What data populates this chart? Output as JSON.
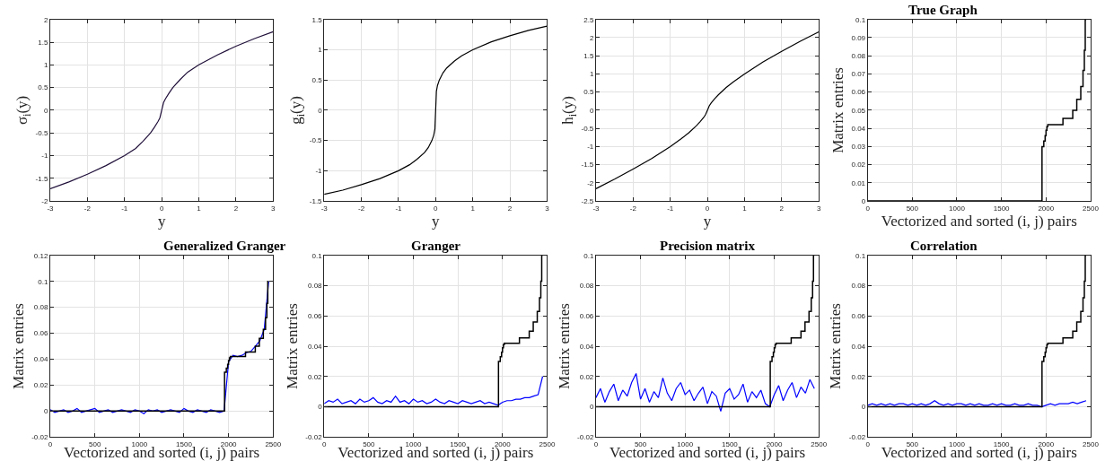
{
  "chart_data": [
    {
      "type": "line",
      "xlabel": "y",
      "ylabel": "σ$_{i}$(y)",
      "xlim": [
        -3,
        3
      ],
      "ylim": [
        -2,
        2
      ],
      "xticks": [
        -3,
        -2,
        -1,
        0,
        1,
        2,
        3
      ],
      "yticks": [
        -2,
        -1.5,
        -1,
        -0.5,
        0,
        0.5,
        1,
        1.5,
        2
      ],
      "grid": true,
      "x": [
        -3,
        -2.5,
        -2,
        -1.5,
        -1,
        -0.7,
        -0.5,
        -0.3,
        -0.2,
        -0.1,
        -0.05,
        0,
        0.05,
        0.1,
        0.2,
        0.3,
        0.5,
        0.7,
        1,
        1.5,
        2,
        2.5,
        3
      ],
      "series": [
        {
          "color": "#20103a",
          "values": [
            -1.73,
            -1.58,
            -1.41,
            -1.22,
            -1,
            -0.84,
            -0.68,
            -0.5,
            -0.38,
            -0.25,
            -0.17,
            0,
            0.17,
            0.25,
            0.38,
            0.5,
            0.68,
            0.84,
            1,
            1.22,
            1.41,
            1.58,
            1.73
          ]
        }
      ]
    },
    {
      "type": "line",
      "xlabel": "y",
      "ylabel": "g$_{i}$(y)",
      "xlim": [
        -3,
        3
      ],
      "ylim": [
        -1.5,
        1.5
      ],
      "xticks": [
        -3,
        -2,
        -1,
        0,
        1,
        2,
        3
      ],
      "yticks": [
        -1.5,
        -1,
        -0.5,
        0,
        0.5,
        1,
        1.5
      ],
      "grid": true,
      "x": [
        -3,
        -2.5,
        -2,
        -1.5,
        -1,
        -0.7,
        -0.5,
        -0.3,
        -0.2,
        -0.1,
        -0.05,
        -0.02,
        0,
        0.02,
        0.05,
        0.1,
        0.2,
        0.3,
        0.5,
        0.7,
        1,
        1.5,
        2,
        2.5,
        3
      ],
      "series": [
        {
          "color": "#000000",
          "values": [
            -1.39,
            -1.32,
            -1.23,
            -1.13,
            -1,
            -0.9,
            -0.81,
            -0.7,
            -0.62,
            -0.5,
            -0.41,
            -0.31,
            0,
            0.31,
            0.41,
            0.5,
            0.62,
            0.7,
            0.81,
            0.9,
            1,
            1.13,
            1.23,
            1.32,
            1.39
          ]
        }
      ]
    },
    {
      "type": "line",
      "xlabel": "y",
      "ylabel": "h$_{i}$(y)",
      "xlim": [
        -3,
        3
      ],
      "ylim": [
        -2.5,
        2.5
      ],
      "xticks": [
        -3,
        -2,
        -1,
        0,
        1,
        2,
        3
      ],
      "yticks": [
        -2.5,
        -2,
        -1.5,
        -1,
        -0.5,
        0,
        0.5,
        1,
        1.5,
        2,
        2.5
      ],
      "grid": true,
      "x": [
        -3,
        -2.5,
        -2,
        -1.5,
        -1,
        -0.7,
        -0.5,
        -0.3,
        -0.2,
        -0.1,
        -0.05,
        0,
        0.05,
        0.1,
        0.2,
        0.3,
        0.5,
        0.7,
        1,
        1.5,
        2,
        2.5,
        3
      ],
      "series": [
        {
          "color": "#000000",
          "values": [
            -2.16,
            -1.9,
            -1.62,
            -1.33,
            -1,
            -0.78,
            -0.62,
            -0.43,
            -0.32,
            -0.2,
            -0.12,
            0,
            0.12,
            0.2,
            0.32,
            0.43,
            0.62,
            0.78,
            1,
            1.33,
            1.62,
            1.9,
            2.16
          ]
        }
      ]
    },
    {
      "type": "line",
      "title": "True Graph",
      "xlabel": "Vectorized and sorted (i, j) pairs",
      "ylabel": "Matrix entries",
      "xlim": [
        0,
        2500
      ],
      "ylim": [
        0,
        0.1
      ],
      "xticks": [
        0,
        500,
        1000,
        1500,
        2000,
        2500
      ],
      "yticks": [
        0,
        0.01,
        0.02,
        0.03,
        0.04,
        0.05,
        0.06,
        0.07,
        0.08,
        0.09,
        0.1
      ],
      "grid": true,
      "series": [
        {
          "type": "step",
          "color": "#000000",
          "x": [
            0,
            1955,
            1975,
            1990,
            2000,
            2010,
            2020,
            2190,
            2300,
            2345,
            2390,
            2415,
            2430,
            2440,
            2450
          ],
          "values": [
            0,
            0.03,
            0.033,
            0.036,
            0.039,
            0.041,
            0.042,
            0.0455,
            0.05,
            0.056,
            0.063,
            0.072,
            0.083,
            0.1,
            0.1
          ]
        }
      ]
    },
    {
      "type": "line",
      "title": "Generalized Granger",
      "xlabel": "Vectorized and sorted (i, j) pairs",
      "ylabel": "Matrix entries",
      "xlim": [
        0,
        2500
      ],
      "ylim": [
        -0.02,
        0.12
      ],
      "xticks": [
        0,
        500,
        1000,
        1500,
        2000,
        2500
      ],
      "yticks": [
        -0.02,
        0,
        0.02,
        0.04,
        0.06,
        0.08,
        0.1,
        0.12
      ],
      "grid": true,
      "x": [
        0,
        50,
        100,
        150,
        200,
        250,
        300,
        350,
        400,
        450,
        500,
        550,
        600,
        650,
        700,
        750,
        800,
        850,
        900,
        950,
        1000,
        1050,
        1100,
        1150,
        1200,
        1250,
        1300,
        1350,
        1400,
        1450,
        1500,
        1550,
        1600,
        1650,
        1700,
        1750,
        1800,
        1850,
        1900,
        1950,
        2000,
        2050,
        2100,
        2150,
        2200,
        2250,
        2300,
        2350,
        2400,
        2450
      ],
      "series": [
        {
          "color": "#0000ff",
          "values": [
            0.001,
            -0.001,
            0.0,
            0.001,
            -0.001,
            0.0,
            0.002,
            -0.001,
            0.0,
            0.001,
            0.002,
            -0.001,
            0.0,
            0.001,
            -0.001,
            0.0,
            0.001,
            0.0,
            -0.001,
            0.001,
            0.0,
            -0.002,
            0.001,
            0.0,
            0.001,
            -0.001,
            0.0,
            0.001,
            0.0,
            -0.001,
            0.002,
            0.0,
            -0.001,
            0.001,
            0.0,
            -0.001,
            0.001,
            0.0,
            -0.001,
            0.0,
            0.038,
            0.043,
            0.042,
            0.043,
            0.045,
            0.046,
            0.05,
            0.054,
            0.063,
            0.1
          ]
        },
        {
          "type": "step",
          "color": "#000000",
          "x": [
            0,
            1955,
            1975,
            1990,
            2000,
            2010,
            2020,
            2190,
            2300,
            2345,
            2390,
            2415,
            2430,
            2440,
            2450
          ],
          "values": [
            0,
            0.03,
            0.033,
            0.036,
            0.039,
            0.041,
            0.042,
            0.0455,
            0.05,
            0.056,
            0.063,
            0.072,
            0.083,
            0.1,
            0.1
          ]
        }
      ]
    },
    {
      "type": "line",
      "title": "Granger",
      "xlabel": "Vectorized and sorted (i, j) pairs",
      "ylabel": "Matrix entries",
      "xlim": [
        0,
        2500
      ],
      "ylim": [
        -0.02,
        0.1
      ],
      "xticks": [
        0,
        500,
        1000,
        1500,
        2000,
        2500
      ],
      "yticks": [
        -0.02,
        0,
        0.02,
        0.04,
        0.06,
        0.08,
        0.1
      ],
      "grid": true,
      "x": [
        0,
        50,
        100,
        150,
        200,
        250,
        300,
        350,
        400,
        450,
        500,
        550,
        600,
        650,
        700,
        750,
        800,
        850,
        900,
        950,
        1000,
        1050,
        1100,
        1150,
        1200,
        1250,
        1300,
        1350,
        1400,
        1450,
        1500,
        1550,
        1600,
        1650,
        1700,
        1750,
        1800,
        1850,
        1900,
        1950,
        2000,
        2050,
        2100,
        2150,
        2200,
        2250,
        2300,
        2350,
        2400,
        2450
      ],
      "series": [
        {
          "color": "#0000ff",
          "values": [
            0.002,
            0.004,
            0.003,
            0.005,
            0.002,
            0.003,
            0.004,
            0.002,
            0.005,
            0.003,
            0.004,
            0.006,
            0.003,
            0.002,
            0.004,
            0.003,
            0.007,
            0.003,
            0.004,
            0.002,
            0.005,
            0.003,
            0.004,
            0.002,
            0.003,
            0.005,
            0.003,
            0.002,
            0.004,
            0.003,
            0.002,
            0.004,
            0.003,
            0.002,
            0.003,
            0.004,
            0.002,
            0.003,
            0.002,
            0.001,
            0.003,
            0.004,
            0.004,
            0.005,
            0.005,
            0.006,
            0.006,
            0.007,
            0.008,
            0.02
          ]
        },
        {
          "type": "step",
          "color": "#000000",
          "x": [
            0,
            1955,
            1975,
            1990,
            2000,
            2010,
            2020,
            2190,
            2300,
            2345,
            2390,
            2415,
            2430,
            2440,
            2450
          ],
          "values": [
            0,
            0.03,
            0.033,
            0.036,
            0.039,
            0.041,
            0.042,
            0.0455,
            0.05,
            0.056,
            0.063,
            0.072,
            0.083,
            0.1,
            0.1
          ]
        }
      ]
    },
    {
      "type": "line",
      "title": "Precision matrix",
      "xlabel": "Vectorized and sorted (i, j) pairs",
      "ylabel": "Matrix entries",
      "xlim": [
        0,
        2500
      ],
      "ylim": [
        -0.02,
        0.1
      ],
      "xticks": [
        0,
        500,
        1000,
        1500,
        2000,
        2500
      ],
      "yticks": [
        -0.02,
        0,
        0.02,
        0.04,
        0.06,
        0.08,
        0.1
      ],
      "grid": true,
      "x": [
        0,
        50,
        100,
        150,
        200,
        250,
        300,
        350,
        400,
        450,
        500,
        550,
        600,
        650,
        700,
        750,
        800,
        850,
        900,
        950,
        1000,
        1050,
        1100,
        1150,
        1200,
        1250,
        1300,
        1350,
        1400,
        1450,
        1500,
        1550,
        1600,
        1650,
        1700,
        1750,
        1800,
        1850,
        1900,
        1950,
        2000,
        2050,
        2100,
        2150,
        2200,
        2250,
        2300,
        2350,
        2400,
        2450
      ],
      "series": [
        {
          "color": "#0000ff",
          "values": [
            0.006,
            0.012,
            0.003,
            0.01,
            0.015,
            0.004,
            0.011,
            0.007,
            0.016,
            0.022,
            0.005,
            0.012,
            0.003,
            0.01,
            0.006,
            0.019,
            0.009,
            0.004,
            0.012,
            0.016,
            0.008,
            0.011,
            0.004,
            0.009,
            0.013,
            0.002,
            0.01,
            0.007,
            -0.003,
            0.009,
            0.012,
            0.005,
            0.008,
            0.015,
            0.003,
            0.01,
            0.006,
            0.011,
            0.002,
            0.0,
            0.008,
            0.014,
            0.004,
            0.011,
            0.016,
            0.006,
            0.013,
            0.009,
            0.018,
            0.012
          ]
        },
        {
          "type": "step",
          "color": "#000000",
          "x": [
            0,
            1955,
            1975,
            1990,
            2000,
            2010,
            2020,
            2190,
            2300,
            2345,
            2390,
            2415,
            2430,
            2440,
            2450
          ],
          "values": [
            0,
            0.03,
            0.033,
            0.036,
            0.039,
            0.041,
            0.042,
            0.0455,
            0.05,
            0.056,
            0.063,
            0.072,
            0.083,
            0.1,
            0.1
          ]
        }
      ]
    },
    {
      "type": "line",
      "title": "Correlation",
      "xlabel": "Vectorized and sorted (i, j) pairs",
      "ylabel": "Matrix entries",
      "xlim": [
        0,
        2500
      ],
      "ylim": [
        -0.02,
        0.1
      ],
      "xticks": [
        0,
        500,
        1000,
        1500,
        2000,
        2500
      ],
      "yticks": [
        -0.02,
        0,
        0.02,
        0.04,
        0.06,
        0.08,
        0.1
      ],
      "grid": true,
      "x": [
        0,
        50,
        100,
        150,
        200,
        250,
        300,
        350,
        400,
        450,
        500,
        550,
        600,
        650,
        700,
        750,
        800,
        850,
        900,
        950,
        1000,
        1050,
        1100,
        1150,
        1200,
        1250,
        1300,
        1350,
        1400,
        1450,
        1500,
        1550,
        1600,
        1650,
        1700,
        1750,
        1800,
        1850,
        1900,
        1950,
        2000,
        2050,
        2100,
        2150,
        2200,
        2250,
        2300,
        2350,
        2400,
        2450
      ],
      "series": [
        {
          "color": "#0000ff",
          "values": [
            0.001,
            0.002,
            0.001,
            0.002,
            0.001,
            0.002,
            0.001,
            0.002,
            0.002,
            0.001,
            0.002,
            0.001,
            0.002,
            0.001,
            0.002,
            0.004,
            0.002,
            0.001,
            0.002,
            0.001,
            0.002,
            0.002,
            0.001,
            0.002,
            0.001,
            0.002,
            0.001,
            0.001,
            0.002,
            0.001,
            0.002,
            0.001,
            0.001,
            0.002,
            0.001,
            0.001,
            0.002,
            0.001,
            0.001,
            0.0,
            0.001,
            0.002,
            0.001,
            0.002,
            0.002,
            0.002,
            0.003,
            0.002,
            0.003,
            0.004
          ]
        },
        {
          "type": "step",
          "color": "#000000",
          "x": [
            0,
            1955,
            1975,
            1990,
            2000,
            2010,
            2020,
            2190,
            2300,
            2345,
            2390,
            2415,
            2430,
            2440,
            2450
          ],
          "values": [
            0,
            0.03,
            0.033,
            0.036,
            0.039,
            0.041,
            0.042,
            0.0455,
            0.05,
            0.056,
            0.063,
            0.072,
            0.083,
            0.1,
            0.1
          ]
        }
      ]
    }
  ]
}
